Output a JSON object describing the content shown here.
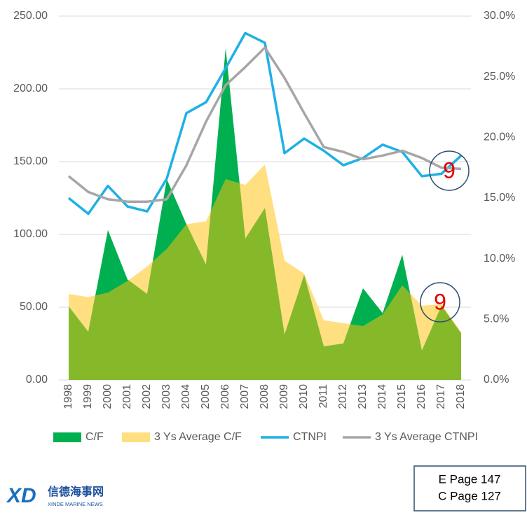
{
  "chart_data": {
    "type": "combo",
    "categories": [
      "1998",
      "1999",
      "2000",
      "2001",
      "2002",
      "2003",
      "2004",
      "2005",
      "2006",
      "2007",
      "2008",
      "2009",
      "2010",
      "2011",
      "2012",
      "2013",
      "2014",
      "2015",
      "2016",
      "2017",
      "2018"
    ],
    "series": [
      {
        "name": "C/F",
        "type": "area",
        "color": "#00b050",
        "values": [
          50.5,
          33,
          103,
          69,
          59,
          138,
          107,
          79,
          228,
          97,
          118,
          31,
          72,
          23,
          25,
          63,
          46,
          86,
          20,
          51,
          32
        ]
      },
      {
        "name": "3 Ys Average C/F",
        "type": "area",
        "color": "#ffdf80",
        "values": [
          59,
          57,
          60,
          68,
          78,
          90,
          107,
          109,
          138,
          134,
          148,
          82,
          73,
          41,
          39,
          37,
          45,
          65,
          51,
          52,
          33
        ]
      },
      {
        "name": "CTNPI",
        "type": "line",
        "axis": "y2",
        "color": "#1fb0e6",
        "values": [
          15.0,
          13.7,
          16.0,
          14.3,
          13.9,
          16.6,
          22.0,
          22.9,
          25.7,
          28.6,
          27.8,
          18.7,
          19.9,
          18.9,
          17.7,
          18.3,
          19.4,
          18.8,
          16.8,
          17.0,
          18.5
        ]
      },
      {
        "name": "3 Ys Average CTNPI",
        "type": "line",
        "axis": "y2",
        "color": "#a6a6a6",
        "values": [
          16.8,
          15.5,
          14.9,
          14.7,
          14.7,
          14.9,
          17.7,
          21.3,
          24.3,
          25.8,
          27.4,
          24.9,
          22.0,
          19.2,
          18.8,
          18.2,
          18.5,
          18.9,
          18.3,
          17.5,
          17.4
        ]
      }
    ],
    "overlap_color": "#86b92a",
    "ylim": [
      0,
      250
    ],
    "yticks": [
      {
        "value": 0,
        "label": "0.00"
      },
      {
        "value": 50,
        "label": "50.00"
      },
      {
        "value": 100,
        "label": "100.00"
      },
      {
        "value": 150,
        "label": "150.00"
      },
      {
        "value": 200,
        "label": "200.00"
      },
      {
        "value": 250,
        "label": "250.00"
      }
    ],
    "y2lim": [
      0,
      30
    ],
    "y2ticks": [
      {
        "value": 0,
        "label": "0.0%"
      },
      {
        "value": 5,
        "label": "5.0%"
      },
      {
        "value": 10,
        "label": "10.0%"
      },
      {
        "value": 15,
        "label": "15.0%"
      },
      {
        "value": 20,
        "label": "20.0%"
      },
      {
        "value": 25,
        "label": "25.0%"
      },
      {
        "value": 30,
        "label": "30.0%"
      }
    ],
    "grid": true,
    "legend": "bottom",
    "annotations": [
      "9",
      "9"
    ]
  },
  "reference_box": [
    "E Page 147",
    "C Page 127"
  ],
  "logo": {
    "mark": "XD",
    "name": "信德海事网",
    "subtitle": "XINDE MARINE NEWS"
  }
}
